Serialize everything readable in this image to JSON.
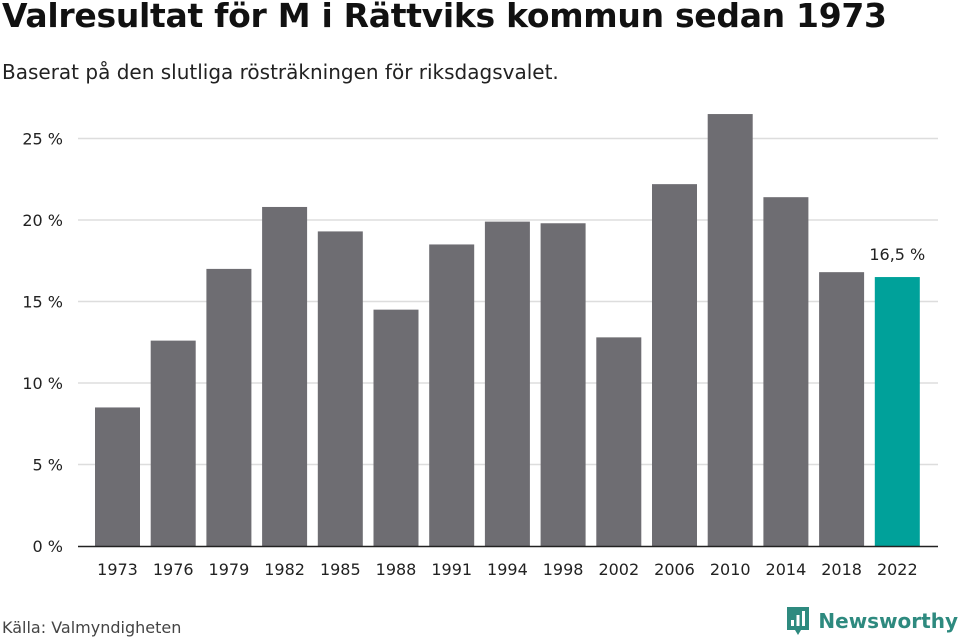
{
  "title": "Valresultat för M i Rättviks kommun sedan 1973",
  "subtitle": "Baserat på den slutliga rösträkningen för riksdagsvalet.",
  "source": "Källa: Valmyndigheten",
  "brand": "Newsworthy",
  "colors": {
    "bar": "#6e6d72",
    "highlight": "#00a19a",
    "grid": "#dddddd",
    "axis": "#222222",
    "brand": "#2e8a7f"
  },
  "chart_data": {
    "type": "bar",
    "title": "Valresultat för M i Rättviks kommun sedan 1973",
    "xlabel": "",
    "ylabel": "",
    "categories": [
      "1973",
      "1976",
      "1979",
      "1982",
      "1985",
      "1988",
      "1991",
      "1994",
      "1998",
      "2002",
      "2006",
      "2010",
      "2014",
      "2018",
      "2022"
    ],
    "values": [
      8.5,
      12.6,
      17.0,
      20.8,
      19.3,
      14.5,
      18.5,
      19.9,
      19.8,
      12.8,
      22.2,
      26.5,
      21.4,
      16.8,
      16.5
    ],
    "ylim": [
      0,
      27
    ],
    "yticks": [
      0,
      5,
      10,
      15,
      20,
      25
    ],
    "ytick_labels": [
      "0 %",
      "5 %",
      "10 %",
      "15 %",
      "20 %",
      "25 %"
    ],
    "highlight_index": 14,
    "annotation": "16,5 %"
  }
}
